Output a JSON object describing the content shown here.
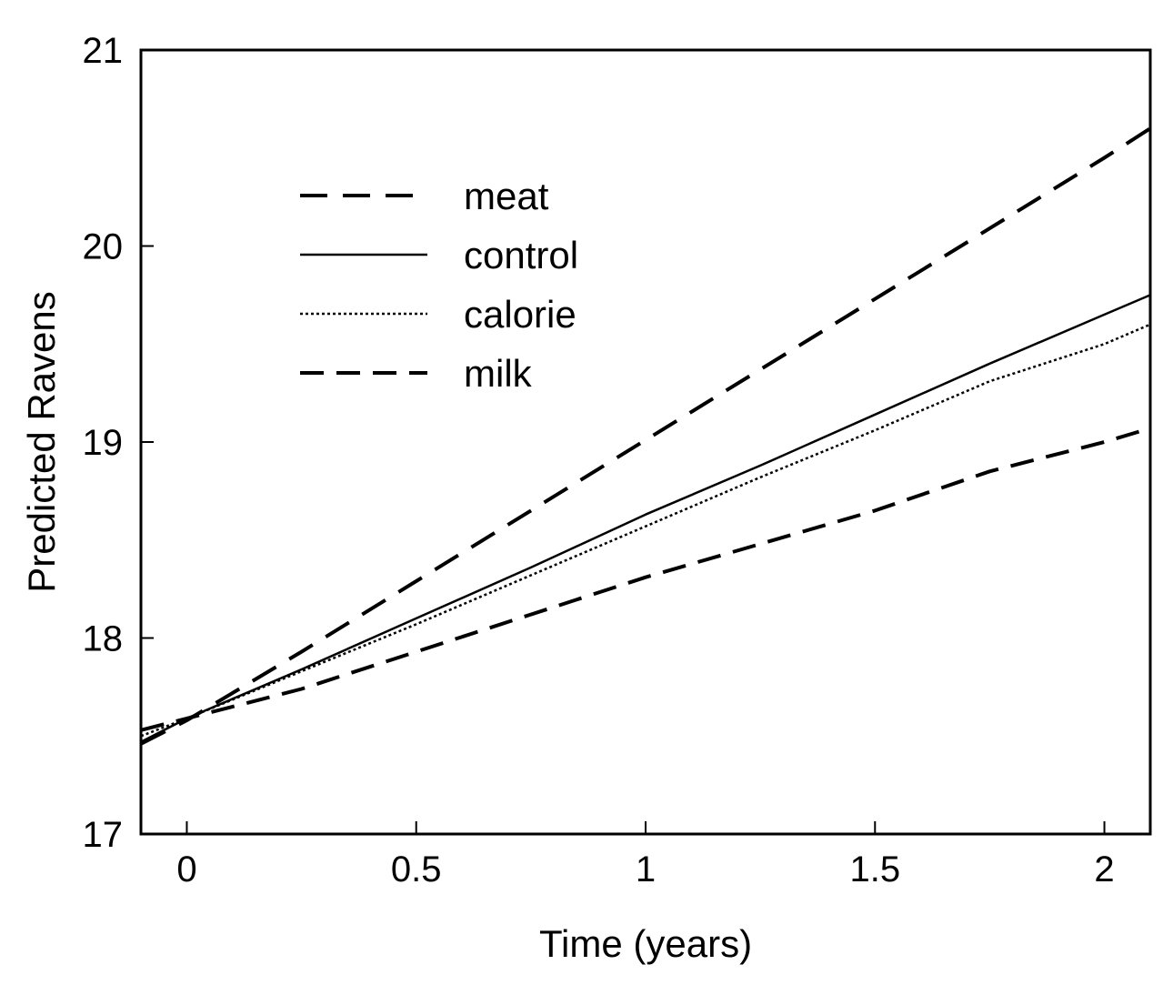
{
  "chart_data": {
    "type": "line",
    "title": "",
    "xlabel": "Time (years)",
    "ylabel": "Predicted Ravens",
    "xlim": [
      -0.1,
      2.1
    ],
    "ylim": [
      17,
      21
    ],
    "x_ticks": [
      0,
      0.5,
      1,
      1.5,
      2
    ],
    "x_tick_labels": [
      "0",
      "0.5",
      "1",
      "1.5",
      "2"
    ],
    "y_ticks": [
      17,
      18,
      19,
      20,
      21
    ],
    "y_tick_labels": [
      "17",
      "18",
      "19",
      "20",
      "21"
    ],
    "grid": false,
    "legend_position": "upper-left",
    "series": [
      {
        "name": "meat",
        "style": "long-dash",
        "color": "#000000",
        "x": [
          -0.1,
          0,
          0.25,
          0.5,
          0.75,
          1,
          1.25,
          1.5,
          1.75,
          2,
          2.1
        ],
        "y": [
          17.46,
          17.58,
          17.93,
          18.29,
          18.65,
          19.01,
          19.37,
          19.73,
          20.09,
          20.45,
          20.6
        ]
      },
      {
        "name": "control",
        "style": "solid",
        "color": "#000000",
        "x": [
          -0.1,
          0,
          0.25,
          0.5,
          0.75,
          1,
          1.25,
          1.5,
          1.75,
          2,
          2.1
        ],
        "y": [
          17.47,
          17.59,
          17.84,
          18.1,
          18.36,
          18.63,
          18.88,
          19.14,
          19.4,
          19.65,
          19.75
        ]
      },
      {
        "name": "calorie",
        "style": "dotted",
        "color": "#000000",
        "x": [
          -0.1,
          0,
          0.25,
          0.5,
          0.75,
          1,
          1.25,
          1.5,
          1.75,
          2,
          2.1
        ],
        "y": [
          17.5,
          17.59,
          17.83,
          18.07,
          18.32,
          18.57,
          18.82,
          19.06,
          19.31,
          19.5,
          19.6
        ]
      },
      {
        "name": "milk",
        "style": "dash",
        "color": "#000000",
        "x": [
          -0.1,
          0,
          0.25,
          0.5,
          0.75,
          1,
          1.25,
          1.5,
          1.75,
          2,
          2.1
        ],
        "y": [
          17.53,
          17.59,
          17.74,
          17.93,
          18.12,
          18.31,
          18.48,
          18.65,
          18.85,
          19.0,
          19.07
        ]
      }
    ]
  }
}
